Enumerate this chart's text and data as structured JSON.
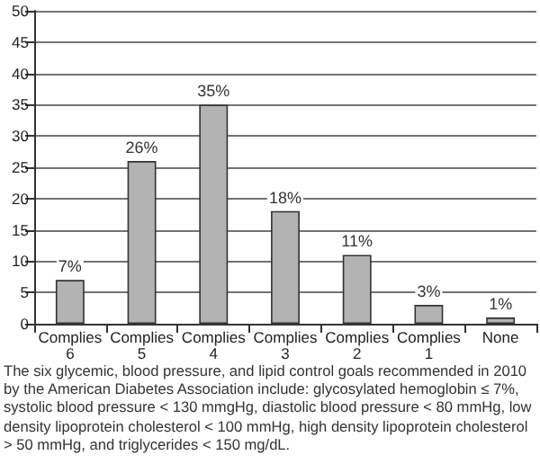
{
  "chart_data": {
    "type": "bar",
    "categories": [
      "Complies 6",
      "Complies 5",
      "Complies 4",
      "Complies 3",
      "Complies 2",
      "Complies 1",
      "None"
    ],
    "values": [
      7,
      26,
      35,
      18,
      11,
      3,
      1
    ],
    "value_labels": [
      "7%",
      "26%",
      "35%",
      "18%",
      "11%",
      "3%",
      "1%"
    ],
    "color": "#b3b3b3",
    "ylim": [
      0,
      50
    ],
    "yticks": [
      0,
      5,
      10,
      15,
      20,
      25,
      30,
      35,
      40,
      45,
      50
    ],
    "grid": "y",
    "annotations": [
      "The six glycemic, blood pressure, and lipid control goals recommended in 2010 by the American Diabetes Association include: glycosylated hemoglobin ≤ 7%, systolic blood pressure < 130 mmgHg, diastolic blood pressure < 80 mmHg, low density lipoprotein cholesterol < 100 mmHg, high density lipoprotein cholesterol > 50 mmHg, and triglycerides < 150 mg/dL."
    ]
  }
}
